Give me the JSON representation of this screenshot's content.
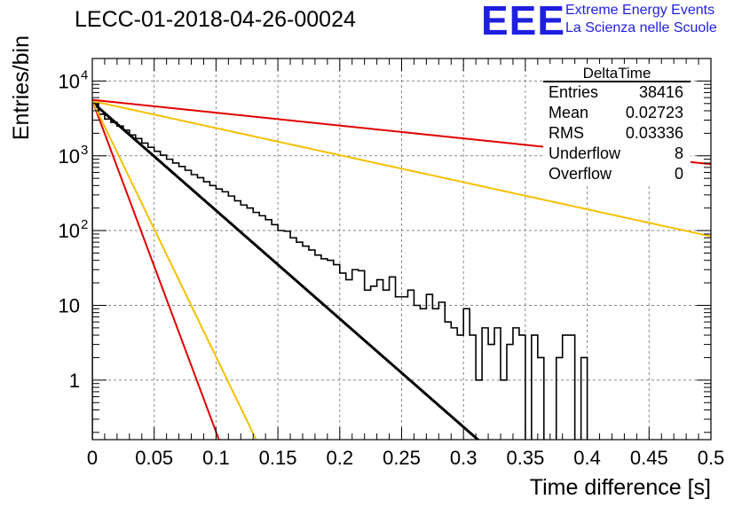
{
  "header": {
    "title": "LECC-01-2018-04-26-00024",
    "logo_text": "EEE",
    "logo_line1": "Extreme Energy Events",
    "logo_line2": "La Scienza nelle Scuole"
  },
  "stats_box": {
    "name": "DeltaTime",
    "rows": [
      {
        "label": "Entries",
        "value": "38416"
      },
      {
        "label": "Mean",
        "value": "0.02723"
      },
      {
        "label": "RMS",
        "value": "0.03336"
      },
      {
        "label": "Underflow",
        "value": "8"
      },
      {
        "label": "Overflow",
        "value": "0"
      }
    ]
  },
  "colors": {
    "histogram": "#000000",
    "fit": "#000000",
    "red": "#e00000",
    "orange": "#f5c000",
    "grid": "#888888"
  },
  "chart_data": {
    "type": "line",
    "title": "LECC-01-2018-04-26-00024",
    "xlabel": "Time difference [s]",
    "ylabel": "Entries/bin",
    "xlim": [
      0,
      0.5
    ],
    "ylim": [
      0.16,
      20000
    ],
    "yscale": "log",
    "grid": true,
    "legend": "none",
    "x_ticks": [
      "0",
      "0.05",
      "0.1",
      "0.15",
      "0.2",
      "0.25",
      "0.3",
      "0.35",
      "0.4",
      "0.45",
      "0.5"
    ],
    "y_ticks": [
      {
        "value": 1,
        "base": "1",
        "exp": ""
      },
      {
        "value": 10,
        "base": "10",
        "exp": ""
      },
      {
        "value": 100,
        "base": "10",
        "exp": "2"
      },
      {
        "value": 1000,
        "base": "10",
        "exp": "3"
      },
      {
        "value": 10000,
        "base": "10",
        "exp": "4"
      }
    ],
    "histogram": {
      "bin_width": 0.005,
      "x_start": 0,
      "counts": [
        4900,
        3600,
        3100,
        2800,
        2500,
        2200,
        1900,
        1700,
        1480,
        1300,
        1150,
        1020,
        900,
        800,
        720,
        640,
        560,
        510,
        450,
        400,
        360,
        330,
        290,
        250,
        220,
        200,
        175,
        158,
        140,
        120,
        100,
        98,
        80,
        70,
        62,
        55,
        47,
        42,
        40,
        35,
        27,
        22,
        30,
        29,
        16,
        18,
        22,
        16,
        24,
        13,
        13,
        16,
        10,
        9,
        14,
        9,
        11,
        6,
        5,
        4,
        9,
        4,
        1.0,
        5,
        3,
        5,
        1.0,
        3,
        5,
        4,
        0.1,
        4,
        2,
        0.1,
        0.1,
        2,
        4,
        4,
        0.1,
        2,
        0.1
      ]
    },
    "series": [
      {
        "type": "exponential",
        "color": "#000000",
        "a": 5200,
        "tau": 0.03,
        "xrange": [
          0,
          0.5
        ]
      },
      {
        "type": "exponential",
        "color": "#e00000",
        "a": 5500,
        "tau": 0.0098,
        "xrange": [
          0,
          0.5
        ]
      },
      {
        "type": "exponential",
        "color": "#f5c000",
        "a": 5400,
        "tau": 0.0127,
        "xrange": [
          0,
          0.5
        ]
      },
      {
        "type": "exponential",
        "color": "#f5c000",
        "a": 5400,
        "tau": 0.12,
        "xrange": [
          0,
          0.5
        ]
      },
      {
        "type": "exponential",
        "color": "#e00000",
        "a": 5600,
        "tau": 0.2525,
        "xrange": [
          0,
          0.5
        ]
      }
    ]
  }
}
